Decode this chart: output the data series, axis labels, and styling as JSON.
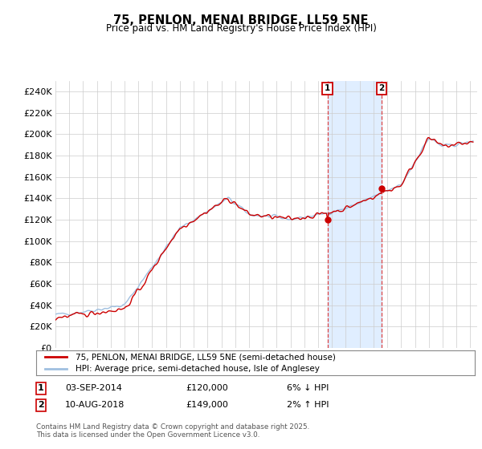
{
  "title": "75, PENLON, MENAI BRIDGE, LL59 5NE",
  "subtitle": "Price paid vs. HM Land Registry's House Price Index (HPI)",
  "ylim": [
    0,
    250000
  ],
  "yticks": [
    0,
    20000,
    40000,
    60000,
    80000,
    100000,
    120000,
    140000,
    160000,
    180000,
    200000,
    220000,
    240000
  ],
  "x_start_year": 1995,
  "x_end_year": 2025,
  "hpi_color": "#a0c0e0",
  "price_color": "#cc0000",
  "bg_color": "#ffffff",
  "grid_color": "#cccccc",
  "transaction1": {
    "label": "1",
    "date": "03-SEP-2014",
    "price": 120000,
    "hpi_diff": "6% ↓ HPI",
    "year": 2014.67
  },
  "transaction2": {
    "label": "2",
    "date": "10-AUG-2018",
    "price": 149000,
    "hpi_diff": "2% ↑ HPI",
    "year": 2018.6
  },
  "legend_line1": "75, PENLON, MENAI BRIDGE, LL59 5NE (semi-detached house)",
  "legend_line2": "HPI: Average price, semi-detached house, Isle of Anglesey",
  "footnote": "Contains HM Land Registry data © Crown copyright and database right 2025.\nThis data is licensed under the Open Government Licence v3.0.",
  "shade_color": "#e0eeff",
  "vline_color": "#dd4444"
}
